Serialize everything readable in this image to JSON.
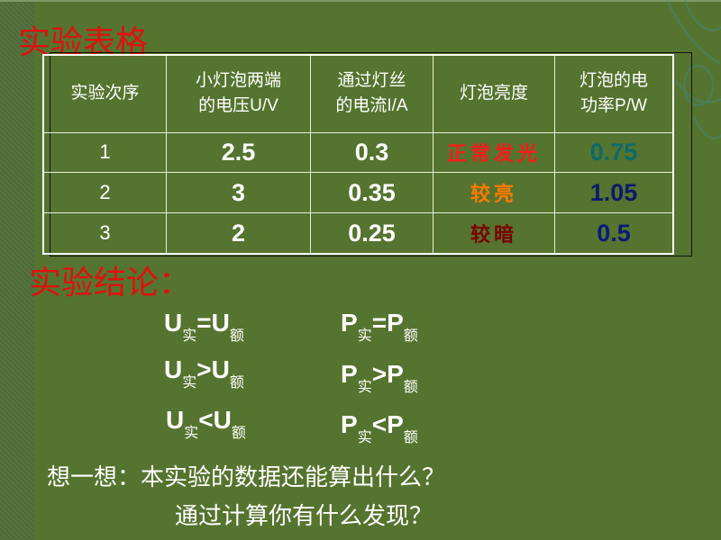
{
  "table_title": "实验表格",
  "table": {
    "headers": [
      "实验次序",
      "小灯泡两端的电压U/V",
      "通过灯丝的电流I/A",
      "灯泡亮度",
      "灯泡的电功率P/W"
    ],
    "header_lines": [
      [
        "实验次序"
      ],
      [
        "小灯泡两端",
        "的电压U/V"
      ],
      [
        "通过灯丝",
        "的电流I/A"
      ],
      [
        "灯泡亮度"
      ],
      [
        "灯泡的电",
        "功率P/W"
      ]
    ],
    "rows": [
      {
        "index": "1",
        "voltage": "2.5",
        "current": "0.3",
        "brightness": "正常发光",
        "power": "0.75",
        "brightness_color": "#ff1a1a",
        "power_color": "#0b6a6a"
      },
      {
        "index": "2",
        "voltage": "3",
        "current": "0.35",
        "brightness": "较亮",
        "power": "1.05",
        "brightness_color": "#ff7a00",
        "power_color": "#0b1a6a"
      },
      {
        "index": "3",
        "voltage": "2",
        "current": "0.25",
        "brightness": "较暗",
        "power": "0.5",
        "brightness_color": "#7a0000",
        "power_color": "#0b1a7a"
      }
    ]
  },
  "conclusion_title": "实验结论：",
  "conclusions": [
    {
      "u_op": "=",
      "p_op": "="
    },
    {
      "u_op": ">",
      "p_op": ">"
    },
    {
      "u_op": "<",
      "p_op": "<"
    }
  ],
  "symbols": {
    "U": "U",
    "P": "P",
    "actual": "实",
    "rated": "额"
  },
  "think": {
    "line1": "想一想：本实验的数据还能算出什么？",
    "line2": "通过计算你有什么发现？"
  },
  "colors": {
    "background": "#55742f",
    "title": "#e01010",
    "text": "#ffffff"
  }
}
